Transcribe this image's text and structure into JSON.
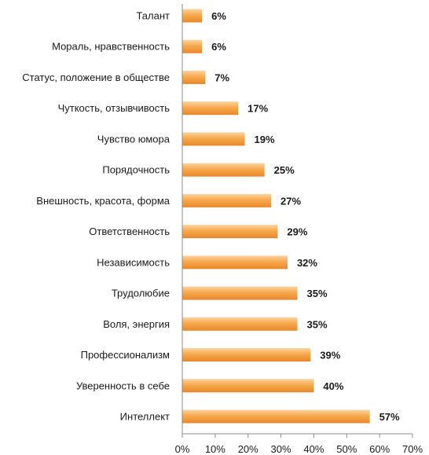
{
  "chart_data": {
    "type": "bar",
    "orientation": "horizontal",
    "categories": [
      "Талант",
      "Мораль, нравственность",
      "Статус, положение в обществе",
      "Чуткость, отзывчивость",
      "Чувство юмора",
      "Порядочность",
      "Внешность, красота, форма",
      "Ответственность",
      "Независимость",
      "Трудолюбие",
      "Воля, энергия",
      "Профессионализм",
      "Уверенность в себе",
      "Интеллект"
    ],
    "values": [
      6,
      6,
      7,
      17,
      19,
      25,
      27,
      29,
      32,
      35,
      35,
      39,
      40,
      57
    ],
    "value_labels": [
      "6%",
      "6%",
      "7%",
      "17%",
      "19%",
      "25%",
      "27%",
      "29%",
      "32%",
      "35%",
      "35%",
      "39%",
      "40%",
      "57%"
    ],
    "xlim": [
      0,
      70
    ],
    "x_ticks": [
      0,
      10,
      20,
      30,
      40,
      50,
      60,
      70
    ],
    "x_tick_labels": [
      "0%",
      "10%",
      "20%",
      "30%",
      "40%",
      "50%",
      "60%",
      "70%"
    ],
    "grid": false,
    "colors": {
      "bar_light": "#fcd3a0",
      "bar_mid": "#f7a94d",
      "bar_dark": "#e8872a",
      "axis": "#8c8c8c"
    }
  }
}
